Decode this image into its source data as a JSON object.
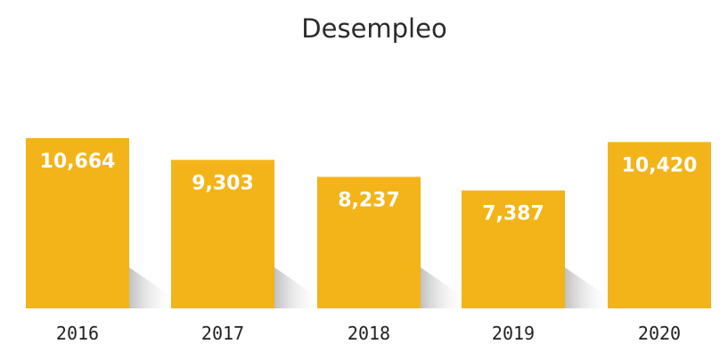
{
  "chart_data": {
    "type": "bar",
    "title": "Desempleo",
    "xlabel": "",
    "ylabel": "",
    "categories": [
      "2016",
      "2017",
      "2018",
      "2019",
      "2020"
    ],
    "values": [
      10664,
      9303,
      8237,
      7387,
      10420
    ],
    "value_labels": [
      "10,664",
      "9,303",
      "8,237",
      "7,387",
      "10,420"
    ],
    "ylim": [
      0,
      10664
    ],
    "grid": false,
    "legend": "none",
    "bar_color": "#f2b418"
  }
}
